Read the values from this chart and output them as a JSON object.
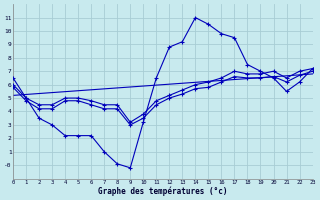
{
  "xlabel": "Graphe des températures (°c)",
  "bg_color": "#c8eaee",
  "line_color": "#0000bb",
  "grid_color": "#a8cdd4",
  "xlim": [
    0,
    23
  ],
  "ylim": [
    -1,
    12
  ],
  "xticks": [
    0,
    1,
    2,
    3,
    4,
    5,
    6,
    7,
    8,
    9,
    10,
    11,
    12,
    13,
    14,
    15,
    16,
    17,
    18,
    19,
    20,
    21,
    22,
    23
  ],
  "yticks": [
    0,
    1,
    2,
    3,
    4,
    5,
    6,
    7,
    8,
    9,
    10,
    11
  ],
  "ytick_labels": [
    "-0",
    "1",
    "2",
    "3",
    "4",
    "5",
    "6",
    "7",
    "8",
    "9",
    "10",
    "11"
  ],
  "curve1_x": [
    0,
    1,
    2,
    3,
    4,
    5,
    6,
    7,
    8,
    9,
    10,
    11,
    12,
    13,
    14,
    15,
    16,
    17,
    18,
    19,
    20,
    21,
    22,
    23
  ],
  "curve1_y": [
    6.5,
    5.0,
    3.5,
    3.0,
    2.2,
    2.2,
    2.2,
    1.0,
    0.1,
    -0.2,
    3.2,
    6.5,
    8.8,
    9.2,
    11.0,
    10.5,
    9.8,
    9.5,
    7.5,
    7.0,
    6.5,
    5.5,
    6.2,
    7.2
  ],
  "curve2_x": [
    0,
    1,
    2,
    3,
    4,
    5,
    6,
    7,
    8,
    9,
    10,
    11,
    12,
    13,
    14,
    15,
    16,
    17,
    18,
    19,
    20,
    21,
    22,
    23
  ],
  "curve2_y": [
    6.0,
    5.0,
    4.5,
    4.5,
    5.0,
    5.0,
    4.8,
    4.5,
    4.5,
    3.2,
    3.8,
    4.8,
    5.2,
    5.6,
    6.0,
    6.2,
    6.5,
    7.0,
    6.8,
    6.8,
    7.0,
    6.5,
    7.0,
    7.2
  ],
  "curve3_x": [
    0,
    1,
    2,
    3,
    4,
    5,
    6,
    7,
    8,
    9,
    10,
    11,
    12,
    13,
    14,
    15,
    16,
    17,
    18,
    19,
    20,
    21,
    22,
    23
  ],
  "curve3_y": [
    5.8,
    4.8,
    4.2,
    4.2,
    4.8,
    4.8,
    4.5,
    4.2,
    4.2,
    3.0,
    3.5,
    4.5,
    5.0,
    5.3,
    5.7,
    5.8,
    6.2,
    6.6,
    6.5,
    6.5,
    6.6,
    6.2,
    6.7,
    7.0
  ],
  "line4_x": [
    0,
    23
  ],
  "line4_y": [
    5.2,
    6.8
  ]
}
